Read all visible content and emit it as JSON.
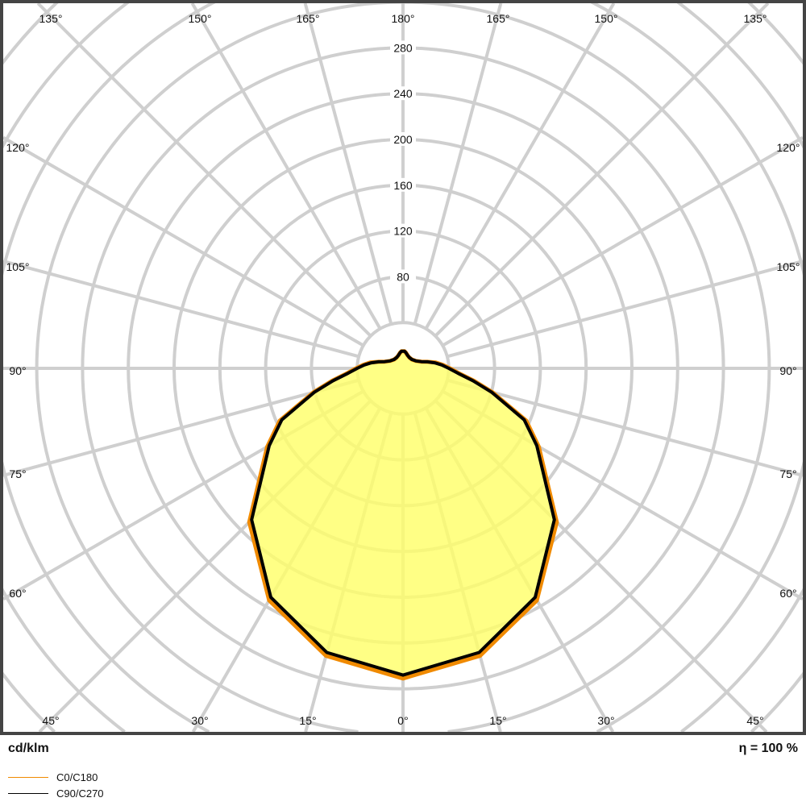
{
  "chart_data": {
    "type": "polar",
    "unit_label": "cd/klm",
    "efficiency_label": "η = 100 %",
    "radial_ticks": [
      80,
      120,
      160,
      200,
      240,
      280
    ],
    "radial_grid_step": 40,
    "angular_grid_step_deg": 15,
    "top_angle_labels": [
      "135°",
      "150°",
      "165°",
      "180°",
      "165°",
      "150°",
      "135°"
    ],
    "side_angle_labels": [
      "120°",
      "105°",
      "90°",
      "75°",
      "60°"
    ],
    "bottom_angle_labels": [
      "45°",
      "30°",
      "15°",
      "0°",
      "15°",
      "30°",
      "45°"
    ],
    "grid": true,
    "legend_placement": "bottom-left",
    "fill_color": "#ffff66",
    "series": [
      {
        "name": "C0/C180",
        "color": "#f08a00",
        "gamma": [
          0,
          15,
          30,
          45,
          60,
          67,
          75,
          80,
          85,
          90,
          95,
          100,
          105,
          110,
          120,
          135,
          150,
          160,
          170,
          175,
          180
        ],
        "values": [
          271,
          260,
          234,
          190,
          137,
          117,
          81,
          63,
          49,
          41,
          35,
          29,
          22,
          17,
          13,
          11,
          11,
          12,
          14,
          15,
          15
        ]
      },
      {
        "name": "C90/C270",
        "color": "#000000",
        "gamma": [
          0,
          15,
          30,
          45,
          60,
          67,
          75,
          80,
          85,
          90,
          95,
          100,
          105,
          110,
          120,
          135,
          150,
          160,
          170,
          175,
          180
        ],
        "values": [
          268,
          257,
          231,
          187,
          135,
          115,
          80,
          62,
          48,
          40,
          34,
          28,
          22,
          17,
          13,
          11,
          11,
          12,
          14,
          15,
          15
        ]
      }
    ]
  }
}
